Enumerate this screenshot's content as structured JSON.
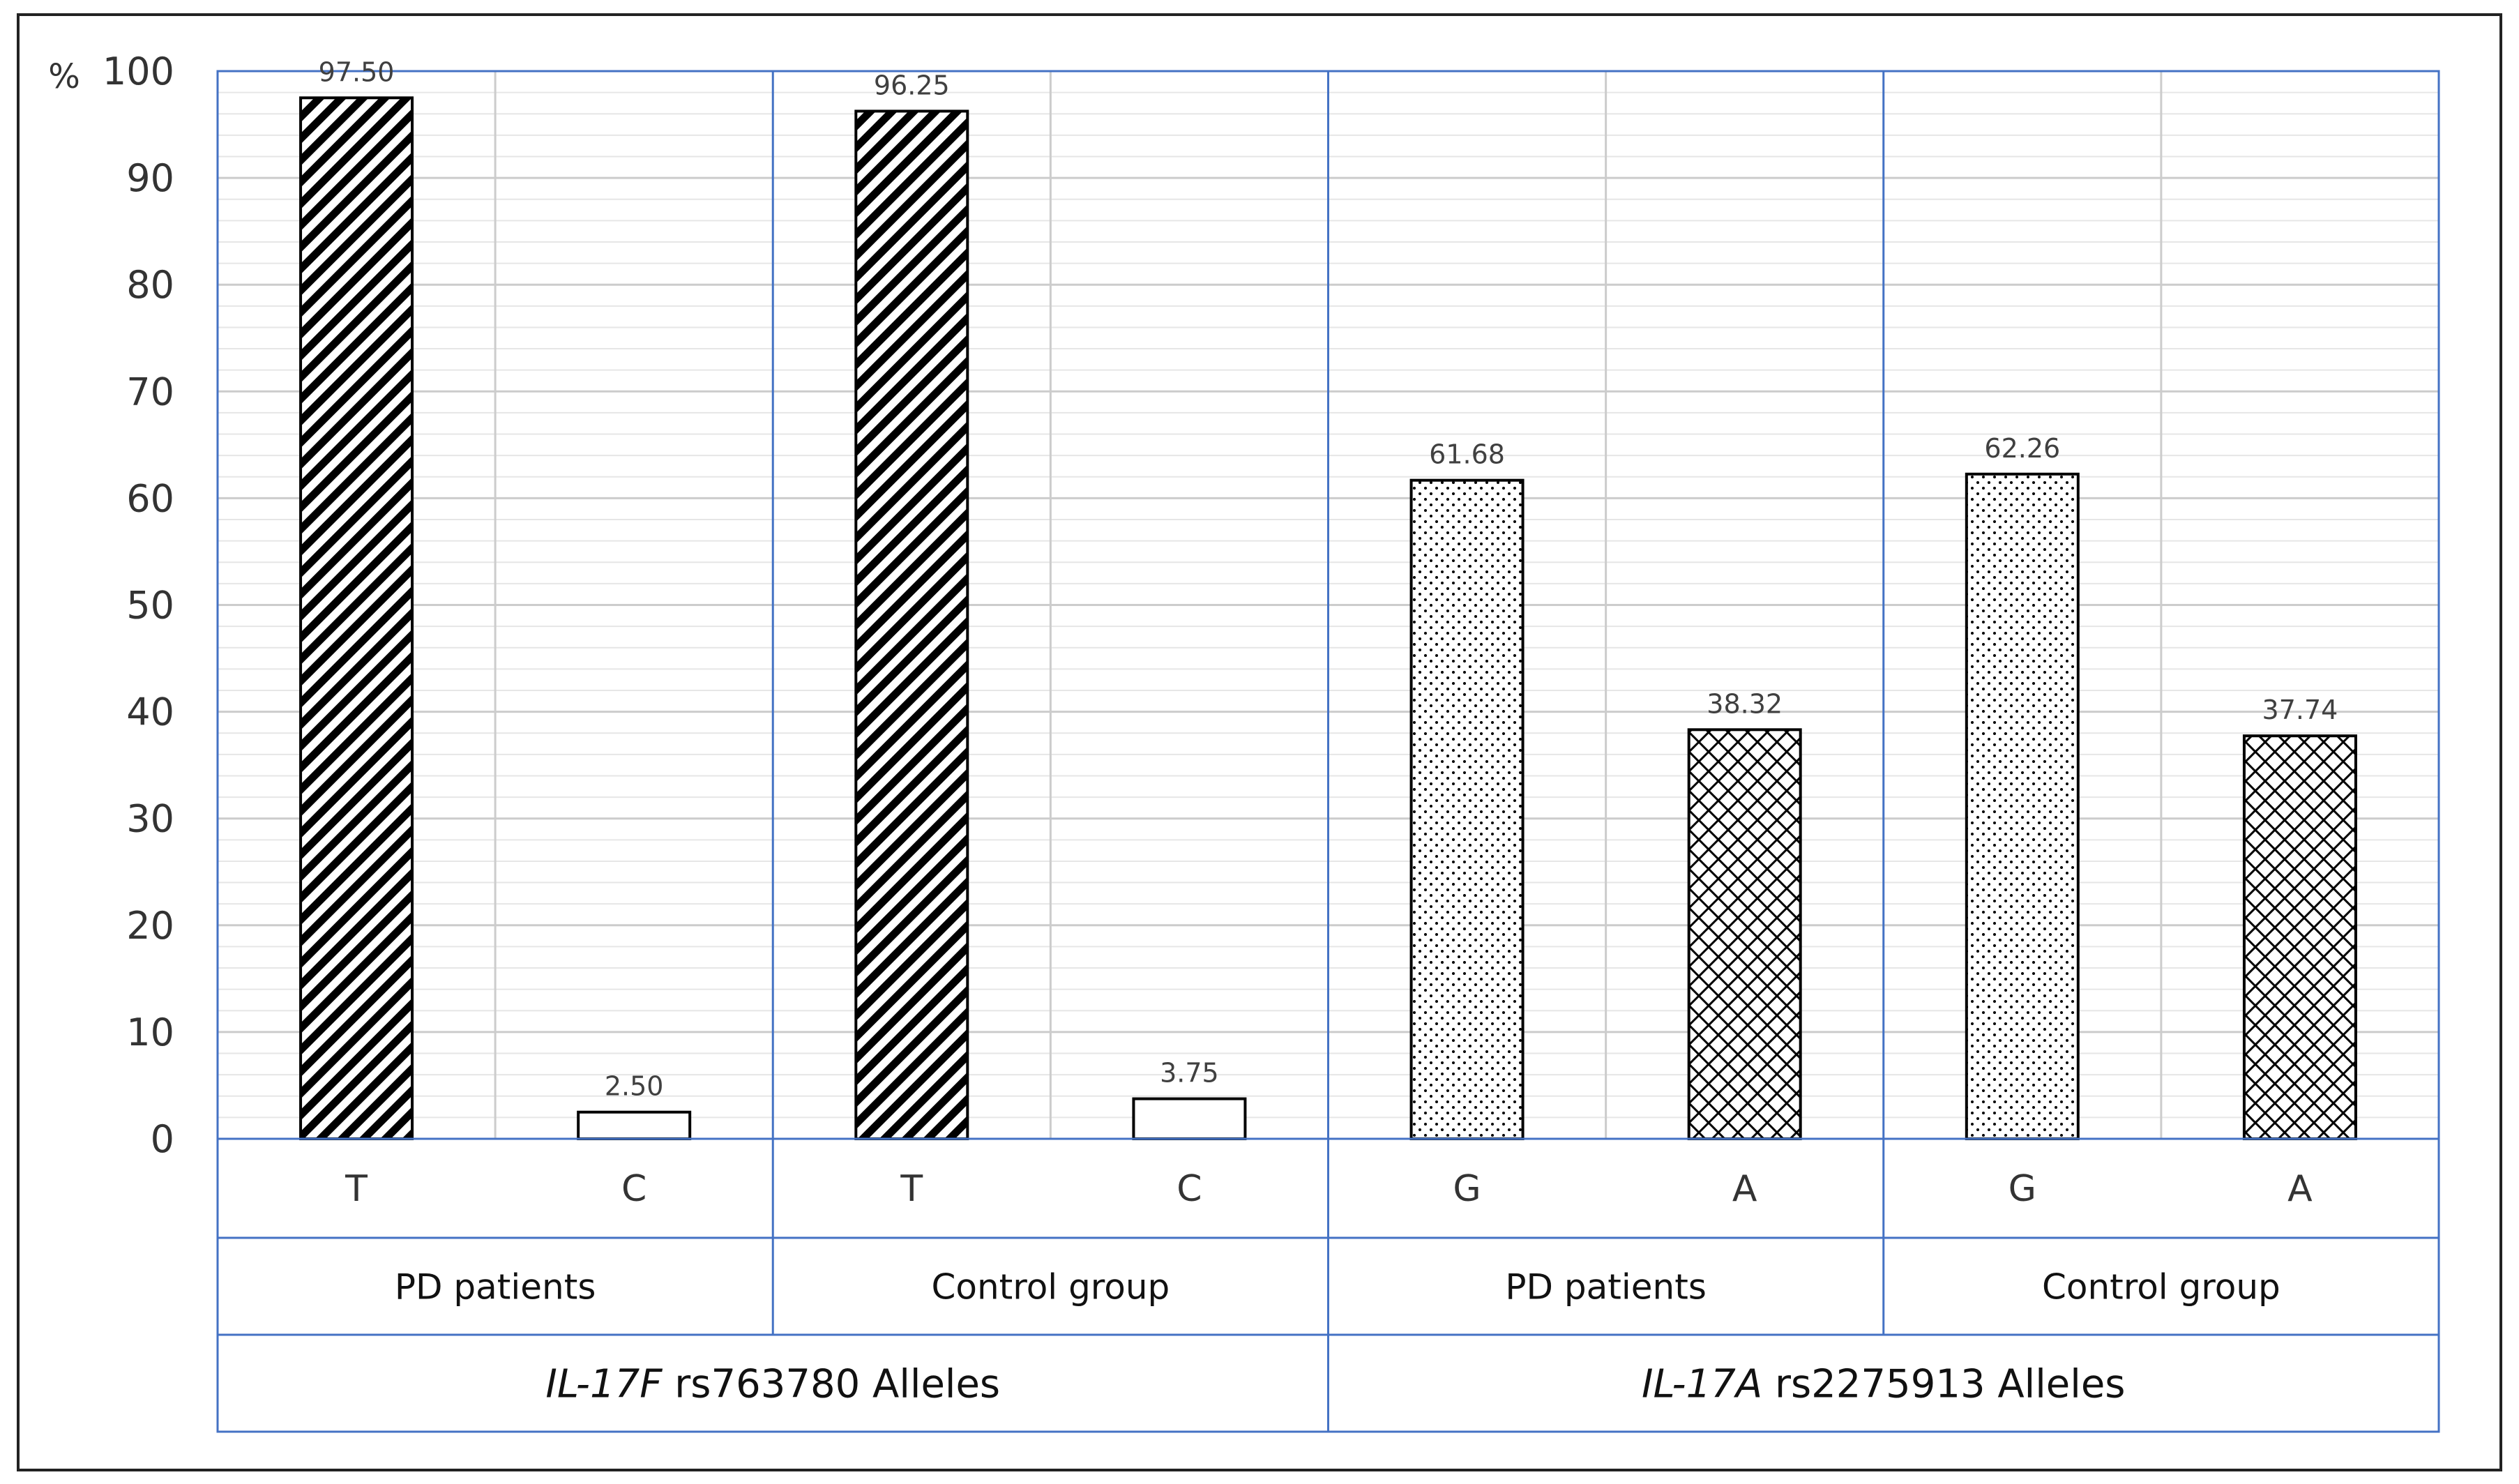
{
  "chart_data": {
    "type": "bar",
    "ylabel": "%",
    "ylim": [
      0,
      100
    ],
    "yticks": [
      "0",
      "10",
      "20",
      "30",
      "40",
      "50",
      "60",
      "70",
      "80",
      "90",
      "100"
    ],
    "grid": true,
    "categories": [
      "T",
      "C",
      "T",
      "C",
      "G",
      "A",
      "G",
      "A"
    ],
    "values": [
      97.5,
      2.5,
      96.25,
      3.75,
      61.68,
      38.32,
      62.26,
      37.74
    ],
    "value_labels": [
      "97.50",
      "2.50",
      "96.25",
      "3.75",
      "61.68",
      "38.32",
      "62.26",
      "37.74"
    ],
    "patterns": [
      "diagonal-stripes",
      "none",
      "diagonal-stripes",
      "none",
      "dots",
      "crosshatch",
      "dots",
      "crosshatch"
    ],
    "groups": [
      "PD patients",
      "Control group",
      "PD patients",
      "Control group"
    ],
    "genes": [
      {
        "italic": "IL-17F",
        "rest": " rs763780 Alleles"
      },
      {
        "italic": "IL-17A",
        "rest": " rs2275913 Alleles"
      }
    ]
  },
  "colors": {
    "frame": "#4472c4",
    "grid_major": "#cccccc",
    "grid_minor": "#e6e6e6",
    "bar_edge": "#000000"
  }
}
